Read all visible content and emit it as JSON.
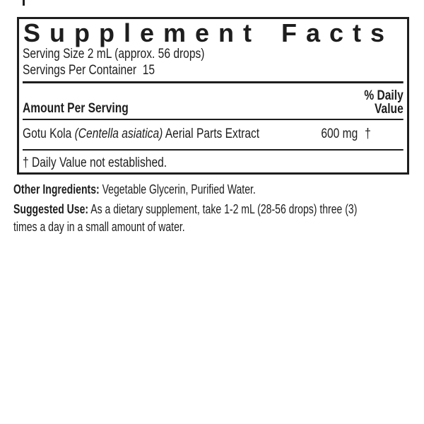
{
  "panel": {
    "title": "Supplement Facts",
    "serving_size": "Serving Size 2 mL (approx. 56 drops)",
    "servings_per_container": "Servings Per Container  15",
    "column_headers": {
      "amount_per_serving": "Amount Per Serving",
      "daily_value_line1": "% Daily",
      "daily_value_line2": "Value"
    },
    "rows": [
      {
        "name_plain": "Gotu Kola ",
        "name_botanical": "(Centella asiatica)",
        "name_rest": " Aerial Parts Extract",
        "amount": "600 mg",
        "daily_value": "†"
      }
    ],
    "footnote": "† Daily Value not established."
  },
  "other_ingredients": {
    "label": "Other Ingredients:",
    "text": " Vegetable Glycerin, Purified Water."
  },
  "suggested_use": {
    "label": "Suggested Use:",
    "text": " As a dietary supplement, take 1-2 mL (28-56 drops) three (3) times a day in a small amount of water."
  },
  "colors": {
    "text": "#1e1e1e",
    "border": "#1e1e1e",
    "background": "#ffffff"
  }
}
